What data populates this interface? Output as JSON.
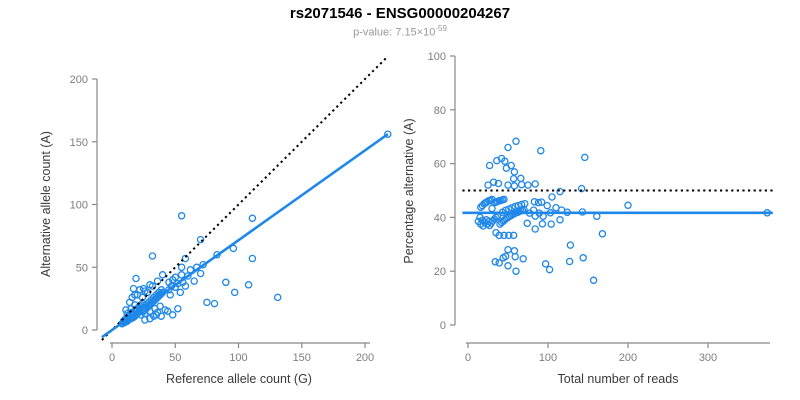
{
  "header": {
    "title": "rs2071546 - ENSG00000204267",
    "p_label": "p-value: 7.15×10",
    "p_exponent": "-59"
  },
  "colors": {
    "accent": "#1e87e8",
    "identity": "#000000",
    "axis": "#888888",
    "tick_label": "#7d7d7d",
    "axis_title": "#3a3a3a",
    "subtitle": "#999999",
    "title": "#000000"
  },
  "chart_data": [
    {
      "type": "scatter",
      "title": "",
      "xlabel": "Reference allele count (G)",
      "ylabel": "Alternative allele count (A)",
      "xticks": [
        0,
        50,
        100,
        150,
        200
      ],
      "yticks": [
        0,
        50,
        100,
        150,
        200
      ],
      "xlim": [
        0,
        220
      ],
      "ylim": [
        0,
        220
      ],
      "grid": false,
      "legend": "none",
      "lines": [
        {
          "name": "identity-line",
          "style": "dotted",
          "color": "#000000",
          "slope": 1,
          "intercept": 0,
          "segment": [
            [
              -8,
              -8
            ],
            [
              218,
              218
            ]
          ]
        },
        {
          "name": "fit-line",
          "style": "solid",
          "color": "#1e87e8",
          "slope": 0.716,
          "intercept": 0,
          "segment": [
            [
              -8,
              -5.7
            ],
            [
              218,
              156
            ]
          ]
        }
      ],
      "points": [
        [
          8,
          5
        ],
        [
          9,
          6
        ],
        [
          9,
          7
        ],
        [
          10,
          6
        ],
        [
          10,
          8
        ],
        [
          11,
          7
        ],
        [
          11,
          9
        ],
        [
          12,
          7
        ],
        [
          12,
          10
        ],
        [
          13,
          8
        ],
        [
          13,
          11
        ],
        [
          14,
          9
        ],
        [
          14,
          12
        ],
        [
          15,
          9
        ],
        [
          15,
          13
        ],
        [
          16,
          10
        ],
        [
          16,
          14
        ],
        [
          17,
          10
        ],
        [
          17,
          13
        ],
        [
          18,
          11
        ],
        [
          18,
          15
        ],
        [
          19,
          12
        ],
        [
          19,
          16
        ],
        [
          20,
          13
        ],
        [
          20,
          17
        ],
        [
          12,
          13
        ],
        [
          15,
          17
        ],
        [
          18,
          20
        ],
        [
          11,
          16
        ],
        [
          14,
          22
        ],
        [
          21,
          14
        ],
        [
          21,
          18
        ],
        [
          22,
          15
        ],
        [
          22,
          19
        ],
        [
          23,
          12
        ],
        [
          23,
          20
        ],
        [
          24,
          26
        ],
        [
          24,
          21
        ],
        [
          25,
          18
        ],
        [
          25,
          15
        ],
        [
          26,
          13
        ],
        [
          26,
          16
        ],
        [
          27,
          20
        ],
        [
          27,
          17
        ],
        [
          28,
          30
        ],
        [
          28,
          18
        ],
        [
          29,
          22
        ],
        [
          29,
          19
        ],
        [
          30,
          15
        ],
        [
          30,
          20
        ],
        [
          31,
          24
        ],
        [
          31,
          21
        ],
        [
          32,
          35
        ],
        [
          32,
          22
        ],
        [
          33,
          26
        ],
        [
          33,
          23
        ],
        [
          34,
          17
        ],
        [
          34,
          24
        ],
        [
          35,
          28
        ],
        [
          35,
          25
        ],
        [
          36,
          39
        ],
        [
          36,
          26
        ],
        [
          37,
          30
        ],
        [
          37,
          27
        ],
        [
          38,
          19
        ],
        [
          38,
          28
        ],
        [
          39,
          32
        ],
        [
          39,
          29
        ],
        [
          40,
          44
        ],
        [
          40,
          30
        ],
        [
          19,
          41
        ],
        [
          17,
          33
        ],
        [
          16,
          26
        ],
        [
          18,
          28
        ],
        [
          22,
          32
        ],
        [
          25,
          33
        ],
        [
          32,
          59
        ],
        [
          20,
          28
        ],
        [
          26,
          31
        ],
        [
          30,
          36
        ],
        [
          33,
          11
        ],
        [
          35,
          12
        ],
        [
          39,
          11
        ],
        [
          48,
          12
        ],
        [
          30,
          9
        ],
        [
          26,
          8
        ],
        [
          44,
          15
        ],
        [
          75,
          22
        ],
        [
          81,
          21
        ],
        [
          97,
          30
        ],
        [
          131,
          26
        ],
        [
          36,
          14
        ],
        [
          42,
          16
        ],
        [
          52,
          17
        ],
        [
          45,
          32
        ],
        [
          45,
          38
        ],
        [
          46,
          28
        ],
        [
          47,
          35
        ],
        [
          48,
          40
        ],
        [
          50,
          34
        ],
        [
          50,
          42
        ],
        [
          52,
          37
        ],
        [
          54,
          30
        ],
        [
          55,
          44
        ],
        [
          56,
          38
        ],
        [
          58,
          57
        ],
        [
          58,
          35
        ],
        [
          60,
          43
        ],
        [
          62,
          48
        ],
        [
          65,
          39
        ],
        [
          67,
          50
        ],
        [
          55,
          50
        ],
        [
          70,
          45
        ],
        [
          72,
          52
        ],
        [
          55,
          91
        ],
        [
          70,
          72
        ],
        [
          111,
          89
        ],
        [
          111,
          57
        ],
        [
          108,
          36
        ],
        [
          218,
          156
        ],
        [
          83,
          60
        ],
        [
          90,
          38
        ],
        [
          96,
          65
        ]
      ]
    },
    {
      "type": "scatter",
      "title": "",
      "xlabel": "Total number of reads",
      "ylabel": "Percentage alternative (A)",
      "xticks": [
        0,
        100,
        200,
        300
      ],
      "yticks": [
        0,
        20,
        40,
        60,
        80,
        100
      ],
      "xlim": [
        0,
        380
      ],
      "ylim": [
        0,
        100
      ],
      "grid": false,
      "legend": "none",
      "lines": [
        {
          "name": "expected-50pct-line",
          "style": "dotted",
          "color": "#000000",
          "y": 50,
          "segment": [
            [
              -7,
              50
            ],
            [
              381,
              50
            ]
          ]
        },
        {
          "name": "fit-mean-line",
          "style": "solid",
          "color": "#1e87e8",
          "y": 41.7,
          "segment": [
            [
              -7,
              41.7
            ],
            [
              381,
              41.7
            ]
          ]
        }
      ],
      "points": [
        [
          13,
          38.5
        ],
        [
          15,
          40
        ],
        [
          16,
          43.8
        ],
        [
          16,
          37.5
        ],
        [
          18,
          44.4
        ],
        [
          18,
          38.9
        ],
        [
          20,
          45
        ],
        [
          19,
          36.8
        ],
        [
          22,
          45.5
        ],
        [
          21,
          38.1
        ],
        [
          24,
          45.8
        ],
        [
          23,
          39.1
        ],
        [
          26,
          46.2
        ],
        [
          24,
          37.5
        ],
        [
          28,
          46.4
        ],
        [
          26,
          38.5
        ],
        [
          30,
          46.7
        ],
        [
          27,
          37
        ],
        [
          30,
          43.3
        ],
        [
          29,
          37.9
        ],
        [
          33,
          45.5
        ],
        [
          31,
          38.7
        ],
        [
          35,
          45.7
        ],
        [
          33,
          39.4
        ],
        [
          37,
          45.9
        ],
        [
          25,
          52
        ],
        [
          32,
          53.1
        ],
        [
          38,
          52.6
        ],
        [
          27,
          59.3
        ],
        [
          36,
          61.1
        ],
        [
          35,
          40
        ],
        [
          39,
          46.2
        ],
        [
          37,
          40.5
        ],
        [
          41,
          46.3
        ],
        [
          35,
          34.3
        ],
        [
          43,
          46.5
        ],
        [
          50,
          52
        ],
        [
          45,
          46.7
        ],
        [
          43,
          41.9
        ],
        [
          40,
          37.5
        ],
        [
          39,
          33.3
        ],
        [
          42,
          38.1
        ],
        [
          47,
          42.6
        ],
        [
          44,
          38.6
        ],
        [
          58,
          51.7
        ],
        [
          46,
          39.1
        ],
        [
          51,
          43.1
        ],
        [
          48,
          39.6
        ],
        [
          45,
          33.3
        ],
        [
          50,
          40
        ],
        [
          55,
          43.6
        ],
        [
          52,
          40.4
        ],
        [
          67,
          52.2
        ],
        [
          54,
          40.7
        ],
        [
          59,
          44.1
        ],
        [
          56,
          41.1
        ],
        [
          51,
          33.3
        ],
        [
          58,
          41.4
        ],
        [
          63,
          44.4
        ],
        [
          60,
          41.7
        ],
        [
          75,
          52
        ],
        [
          62,
          41.9
        ],
        [
          67,
          44.8
        ],
        [
          64,
          42.2
        ],
        [
          57,
          33.3
        ],
        [
          66,
          42.4
        ],
        [
          71,
          45.1
        ],
        [
          68,
          42.6
        ],
        [
          84,
          52.4
        ],
        [
          70,
          42.9
        ],
        [
          60,
          68.3
        ],
        [
          50,
          66
        ],
        [
          42,
          61.9
        ],
        [
          46,
          60.9
        ],
        [
          54,
          59.3
        ],
        [
          58,
          56.9
        ],
        [
          91,
          64.8
        ],
        [
          48,
          58.3
        ],
        [
          57,
          54.4
        ],
        [
          66,
          54.5
        ],
        [
          44,
          25
        ],
        [
          47,
          25.5
        ],
        [
          50,
          22
        ],
        [
          60,
          20
        ],
        [
          39,
          23.1
        ],
        [
          34,
          23.5
        ],
        [
          59,
          25.4
        ],
        [
          97,
          22.7
        ],
        [
          102,
          20.6
        ],
        [
          127,
          23.6
        ],
        [
          157,
          16.6
        ],
        [
          50,
          28
        ],
        [
          58,
          27.6
        ],
        [
          69,
          24.6
        ],
        [
          77,
          41.6
        ],
        [
          83,
          45.8
        ],
        [
          74,
          37.8
        ],
        [
          82,
          42.7
        ],
        [
          88,
          45.5
        ],
        [
          84,
          40.5
        ],
        [
          92,
          45.7
        ],
        [
          89,
          41.6
        ],
        [
          84,
          35.7
        ],
        [
          99,
          44.4
        ],
        [
          94,
          40.4
        ],
        [
          115,
          49.6
        ],
        [
          93,
          37.6
        ],
        [
          103,
          41.7
        ],
        [
          110,
          43.6
        ],
        [
          104,
          37.5
        ],
        [
          117,
          42.7
        ],
        [
          105,
          47.6
        ],
        [
          115,
          39.1
        ],
        [
          124,
          41.9
        ],
        [
          146,
          62.3
        ],
        [
          142,
          50.7
        ],
        [
          200,
          44.5
        ],
        [
          168,
          33.9
        ],
        [
          144,
          25
        ],
        [
          374,
          41.7
        ],
        [
          143,
          42
        ],
        [
          128,
          29.7
        ],
        [
          161,
          40.4
        ]
      ]
    }
  ]
}
